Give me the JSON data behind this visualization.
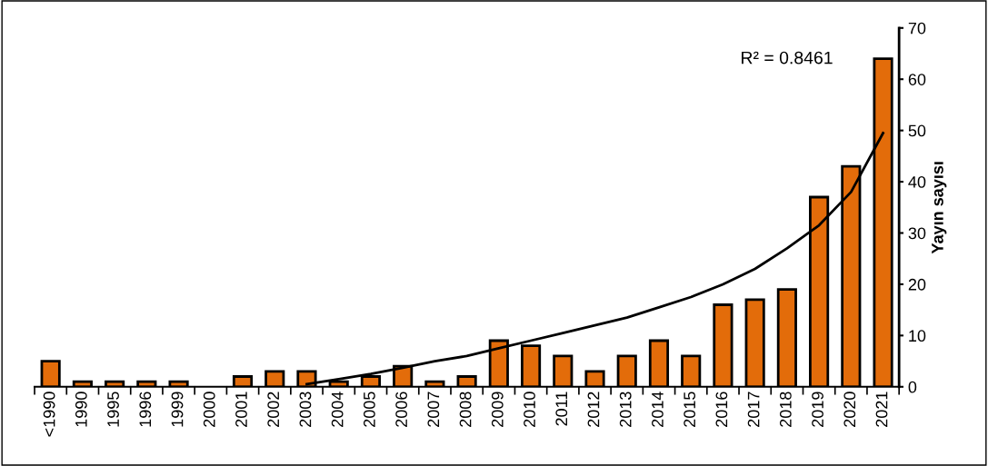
{
  "chart_data": {
    "type": "bar",
    "ylabel": "Yayın sayısı",
    "categories": [
      "<1990",
      "1990",
      "1995",
      "1996",
      "1999",
      "2000",
      "2001",
      "2002",
      "2003",
      "2004",
      "2005",
      "2006",
      "2007",
      "2008",
      "2009",
      "2010",
      "2011",
      "2012",
      "2013",
      "2014",
      "2015",
      "2016",
      "2017",
      "2018",
      "2019",
      "2020",
      "2021"
    ],
    "series": [
      {
        "color": "#e36c0a",
        "values": [
          5,
          1,
          1,
          1,
          1,
          0,
          2,
          3,
          3,
          1,
          2,
          4,
          1,
          2,
          9,
          8,
          6,
          3,
          6,
          9,
          6,
          16,
          17,
          19,
          37,
          43,
          64
        ]
      },
      {
        "type": "line",
        "color": "#000000",
        "values": [
          null,
          null,
          null,
          null,
          null,
          null,
          null,
          null,
          0.5,
          1.5,
          2.5,
          3.7,
          5,
          6,
          7.5,
          9,
          10.5,
          12,
          13.5,
          15.5,
          17.5,
          20,
          23,
          27,
          31.5,
          38,
          49.5
        ]
      }
    ],
    "annotations": [
      "R² = 0.8461"
    ],
    "ylim": [
      0,
      70
    ],
    "yticks": [
      0,
      10,
      20,
      30,
      40,
      50,
      60,
      70
    ],
    "grid": false,
    "legend": false
  }
}
